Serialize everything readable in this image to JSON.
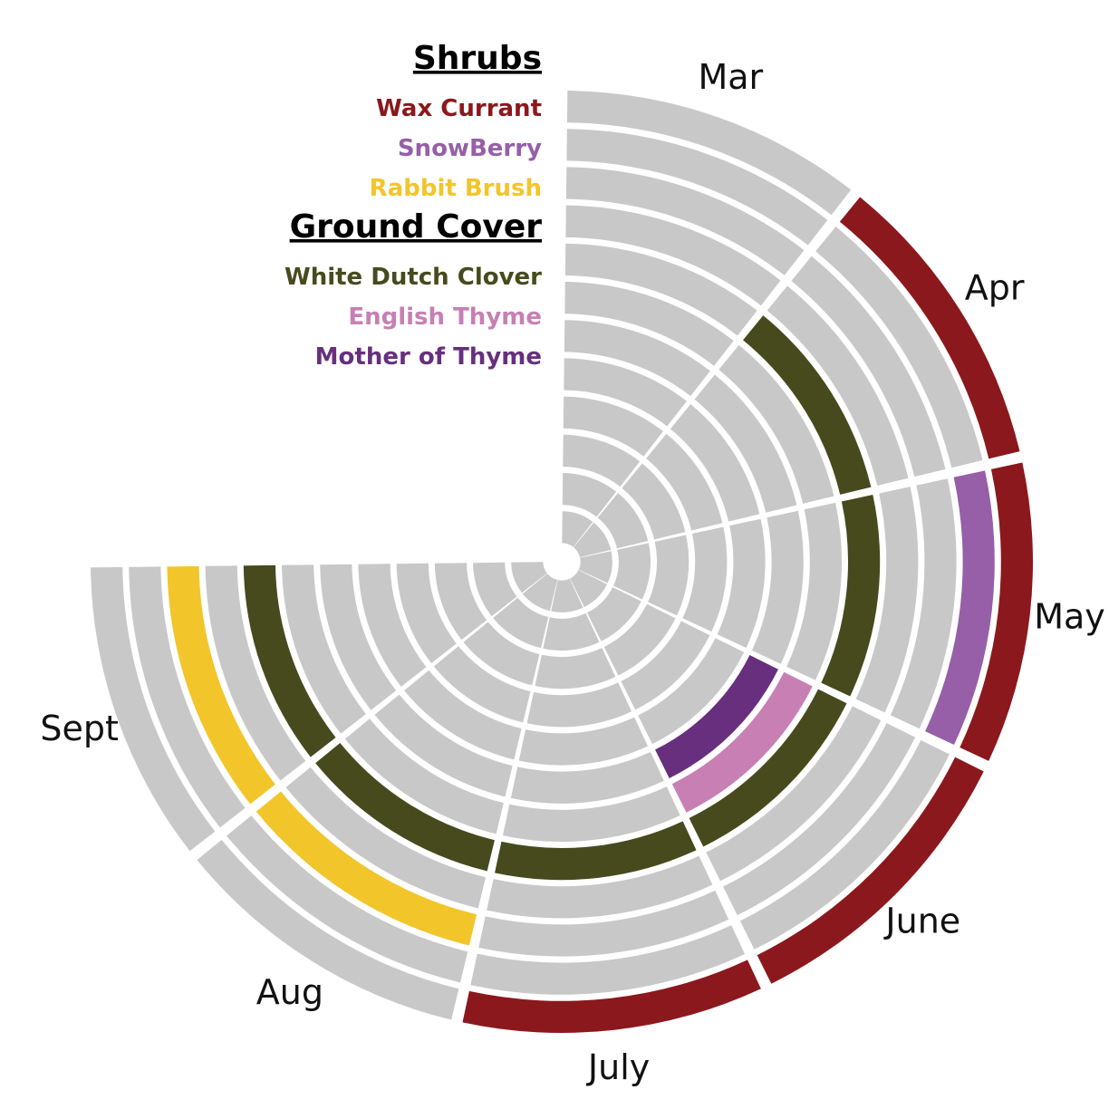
{
  "chart_data": {
    "type": "radial-bar",
    "months": [
      "Mar",
      "Apr",
      "May",
      "June",
      "July",
      "Aug",
      "Sept"
    ],
    "ring_count": 12,
    "background_color": "#c8c8c8",
    "legend": {
      "groups": [
        {
          "heading": "Shrubs",
          "items": [
            {
              "label": "Wax Currant",
              "color": "#8b181d"
            },
            {
              "label": "SnowBerry",
              "color": "#965fa8"
            },
            {
              "label": "Rabbit Brush",
              "color": "#f2c52a"
            }
          ]
        },
        {
          "heading": "Ground Cover",
          "items": [
            {
              "label": "White Dutch Clover",
              "color": "#474a1d"
            },
            {
              "label": "English Thyme",
              "color": "#c77fb4"
            },
            {
              "label": "Mother of Thyme",
              "color": "#672f7d"
            }
          ]
        }
      ]
    },
    "series": [
      {
        "name": "Wax Currant",
        "ring": 1,
        "months": [
          "Apr",
          "May",
          "June",
          "July"
        ]
      },
      {
        "name": "SnowBerry",
        "ring": 2,
        "months": [
          "May"
        ]
      },
      {
        "name": "Rabbit Brush",
        "ring": 3,
        "months": [
          "Aug",
          "Sept"
        ]
      },
      {
        "name": "White Dutch Clover",
        "ring": 5,
        "months": [
          "Apr",
          "May",
          "June",
          "July",
          "Aug",
          "Sept"
        ]
      },
      {
        "name": "English Thyme",
        "ring": 6,
        "months": [
          "June"
        ]
      },
      {
        "name": "Mother of Thyme",
        "ring": 7,
        "months": [
          "June"
        ]
      }
    ]
  }
}
